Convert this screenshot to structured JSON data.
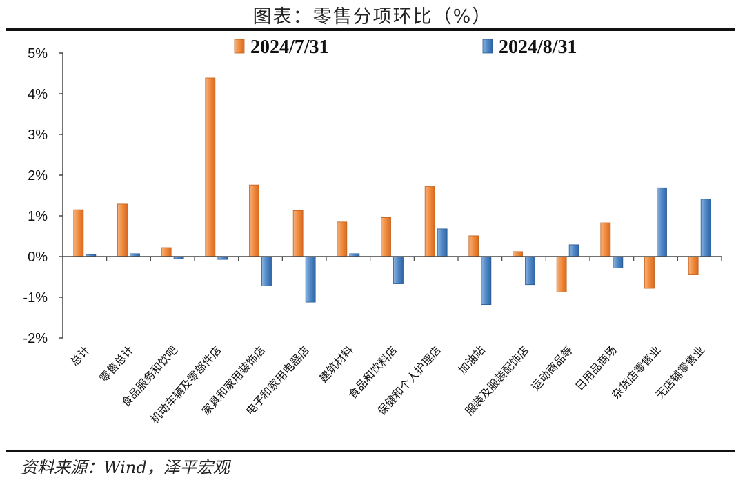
{
  "figure": {
    "title": "图表：零售分项环比（%）",
    "source": "资料来源：Wind，泽平宏观"
  },
  "colors": {
    "series_a": "#f08a3c",
    "series_a_edge": "#c0601c",
    "series_b": "#4f86c6",
    "series_b_edge": "#2a5a92"
  },
  "chart_data": {
    "type": "bar",
    "title": "",
    "xlabel": "",
    "ylabel": "",
    "ylim": [
      -2,
      5
    ],
    "yticks": [
      -2,
      -1,
      0,
      1,
      2,
      3,
      4,
      5
    ],
    "ytick_labels": [
      "-2%",
      "-1%",
      "0%",
      "1%",
      "2%",
      "3%",
      "4%",
      "5%"
    ],
    "grid": false,
    "legend": "top",
    "categories": [
      "总计",
      "零售总计",
      "食品服务和饮吧",
      "机动车辆及零部件店",
      "家具和家用装饰店",
      "电子和家用电器店",
      "建筑材料",
      "食品和饮料店",
      "保健和个人护理店",
      "加油站",
      "服装及服装配饰店",
      "运动商品等",
      "日用品商场",
      "杂货店零售业",
      "无店铺零售业"
    ],
    "series": [
      {
        "name": "2024/7/31",
        "values": [
          1.15,
          1.29,
          0.22,
          4.39,
          1.76,
          1.13,
          0.85,
          0.96,
          1.72,
          0.51,
          0.12,
          -0.87,
          0.83,
          -0.78,
          -0.45
        ]
      },
      {
        "name": "2024/8/31",
        "values": [
          0.05,
          0.07,
          -0.05,
          -0.07,
          -0.72,
          -1.12,
          0.07,
          -0.67,
          0.68,
          -1.18,
          -0.69,
          0.29,
          -0.28,
          1.69,
          1.41
        ]
      }
    ]
  }
}
